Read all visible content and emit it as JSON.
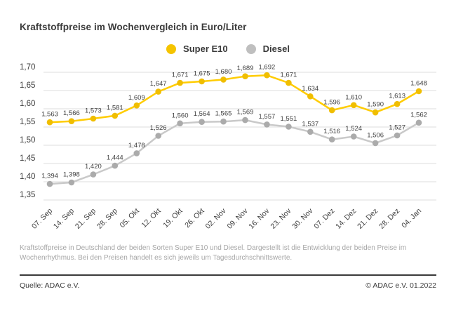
{
  "title": "Kraftstoffpreise im Wochenvergleich in Euro/Liter",
  "footnote": "Kraftstoffpreise in Deutschland der beiden Sorten Super E10 und Diesel. Dargestellt ist die Entwicklung der beiden Preise im Wochenrhythmus. Bei den Preisen handelt es sich jeweils um Tagesdurchschnittswerte.",
  "source": "Quelle: ADAC e.V.",
  "copyright": "© ADAC e.V. 01.2022",
  "colors": {
    "brand_yellow": "#ffcc00",
    "grid_line": "#dddddd",
    "text_dark": "#3a3a3a",
    "text_muted": "#a6a6a6"
  },
  "chart_data": {
    "type": "line",
    "title": "Kraftstoffpreise im Wochenvergleich in Euro/Liter",
    "xlabel": "",
    "ylabel": "Euro/Liter",
    "ylim": [
      1.35,
      1.7
    ],
    "grid": true,
    "legend_position": "top-center",
    "categories": [
      "07. Sep",
      "14. Sep",
      "21. Sep",
      "28. Sep",
      "05. Okt",
      "12. Okt",
      "19. Okt",
      "26. Okt",
      "02. Nov",
      "09. Nov",
      "16. Nov",
      "23. Nov",
      "30. Nov",
      "07. Dez",
      "14. Dez",
      "21. Dez",
      "28. Dez",
      "04. Jan"
    ],
    "y_ticks": {
      "labels": [
        "1,70",
        "1,65",
        "1,60",
        "1,55",
        "1,50",
        "1,45",
        "1,40",
        "1,35"
      ],
      "values": [
        1.7,
        1.65,
        1.6,
        1.55,
        1.5,
        1.45,
        1.4,
        1.35
      ]
    },
    "series": [
      {
        "name": "Super E10",
        "color": "#ffcc00",
        "point_color": "#f0be00",
        "legend_color": "#f5c400",
        "values": [
          1.563,
          1.566,
          1.573,
          1.581,
          1.609,
          1.647,
          1.671,
          1.675,
          1.68,
          1.689,
          1.692,
          1.671,
          1.634,
          1.596,
          1.61,
          1.59,
          1.613,
          1.648
        ],
        "labels": [
          "1,563",
          "1,566",
          "1,573",
          "1,581",
          "1,609",
          "1,647",
          "1,671",
          "1,675",
          "1,680",
          "1,689",
          "1,692",
          "1,671",
          "1,634",
          "1,596",
          "1,610",
          "1,590",
          "1,613",
          "1,648"
        ]
      },
      {
        "name": "Diesel",
        "color": "#c9c9c9",
        "point_color": "#ababab",
        "legend_color": "#bfbfbf",
        "values": [
          1.394,
          1.398,
          1.42,
          1.444,
          1.478,
          1.526,
          1.56,
          1.564,
          1.565,
          1.569,
          1.557,
          1.551,
          1.537,
          1.516,
          1.524,
          1.506,
          1.527,
          1.562
        ],
        "labels": [
          "1,394",
          "1,398",
          "1,420",
          "1,444",
          "1,478",
          "1,526",
          "1,560",
          "1,564",
          "1,565",
          "1,569",
          "1,557",
          "1,551",
          "1,537",
          "1,516",
          "1,524",
          "1,506",
          "1,527",
          "1,562"
        ]
      }
    ]
  }
}
